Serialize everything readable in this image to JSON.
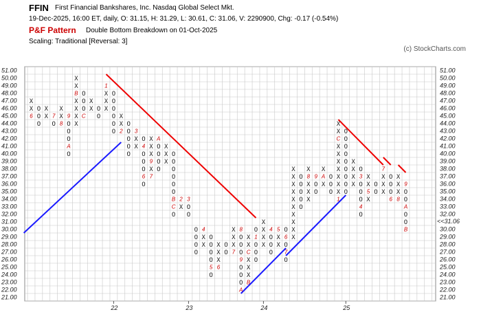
{
  "header": {
    "symbol": "FFIN",
    "company": "First Financial Bankshares, Inc.  Nasdaq Global Select Mkt.",
    "ohlc_line": "19-Dec-2025, 16:00 ET, daily, O: 31.15, H: 31.29, L: 30.61, C: 31.06, V: 2290900, Chg: -0.17 (-0.54%)",
    "pattern_label": "P&F Pattern",
    "pattern_text": "Double Bottom Breakdown on 01-Oct-2025",
    "scaling": "Scaling: Traditional [Reversal: 3]",
    "copyright": "(c) StockCharts.com"
  },
  "colors": {
    "grid": "#c8c8c8",
    "mark": "#222222",
    "month_label": "#cc0000",
    "support": "#1a1aff",
    "resistance": "#ee0000",
    "current_price": "#cc0000"
  },
  "chart_data": {
    "type": "point_and_figure",
    "box_size": 1,
    "reversal": 3,
    "ylim": [
      21,
      51
    ],
    "y_ticks": [
      "21.00",
      "22.00",
      "23.00",
      "24.00",
      "25.00",
      "26.00",
      "27.00",
      "28.00",
      "29.00",
      "30.00",
      "31.00",
      "32.00",
      "33.00",
      "34.00",
      "35.00",
      "36.00",
      "37.00",
      "38.00",
      "39.00",
      "40.00",
      "41.00",
      "42.00",
      "43.00",
      "44.00",
      "45.00",
      "46.00",
      "47.00",
      "48.00",
      "49.00",
      "50.00",
      "51.00"
    ],
    "current_price": 31.06,
    "current_price_label": "31.00",
    "current_price_tag": "31.06",
    "current_price_tag_prefix": "<<",
    "year_labels": [
      {
        "column": 11,
        "label": "22"
      },
      {
        "column": 21,
        "label": "23"
      },
      {
        "column": 31,
        "label": "24"
      },
      {
        "column": 42,
        "label": "25"
      }
    ],
    "columns": [
      {
        "type": "X",
        "low": 46,
        "high": 47,
        "months": [
          {
            "price": 45,
            "label": "6"
          }
        ]
      },
      {
        "type": "O",
        "low": 44,
        "high": 46
      },
      {
        "type": "X",
        "low": 45,
        "high": 46
      },
      {
        "type": "O",
        "low": 44,
        "high": 45,
        "months": [
          {
            "price": 45,
            "label": "7"
          }
        ]
      },
      {
        "type": "X",
        "low": 45,
        "high": 46,
        "months": [
          {
            "price": 44,
            "label": "8"
          }
        ]
      },
      {
        "type": "O",
        "low": 40,
        "high": 45,
        "months": [
          {
            "price": 45,
            "label": "9"
          },
          {
            "price": 41,
            "label": "A"
          }
        ]
      },
      {
        "type": "X",
        "low": 44,
        "high": 50,
        "months": [
          {
            "price": 48,
            "label": "B"
          }
        ]
      },
      {
        "type": "O",
        "low": 45,
        "high": 48,
        "months": [
          {
            "price": 45,
            "label": "C"
          }
        ]
      },
      {
        "type": "X",
        "low": 46,
        "high": 47
      },
      {
        "type": "O",
        "low": 45,
        "high": 46
      },
      {
        "type": "X",
        "low": 46,
        "high": 49,
        "months": [
          {
            "price": 49,
            "label": "1"
          }
        ]
      },
      {
        "type": "O",
        "low": 43,
        "high": 48
      },
      {
        "type": "X",
        "low": 44,
        "high": 45,
        "months": [
          {
            "price": 43,
            "label": "2"
          }
        ]
      },
      {
        "type": "O",
        "low": 40,
        "high": 44
      },
      {
        "type": "X",
        "low": 41,
        "high": 43,
        "months": [
          {
            "price": 43,
            "label": "3"
          }
        ]
      },
      {
        "type": "O",
        "low": 36,
        "high": 42,
        "months": [
          {
            "price": 41,
            "label": "4"
          },
          {
            "price": 37,
            "label": "6"
          }
        ]
      },
      {
        "type": "X",
        "low": 37,
        "high": 42,
        "months": [
          {
            "price": 39,
            "label": "9"
          },
          {
            "price": 37,
            "label": "7"
          }
        ]
      },
      {
        "type": "O",
        "low": 38,
        "high": 42,
        "months": [
          {
            "price": 42,
            "label": "A"
          }
        ]
      },
      {
        "type": "X",
        "low": 39,
        "high": 41
      },
      {
        "type": "O",
        "low": 32,
        "high": 40,
        "months": [
          {
            "price": 34,
            "label": "B"
          },
          {
            "price": 33,
            "label": "C"
          }
        ]
      },
      {
        "type": "X",
        "low": 33,
        "high": 34,
        "months": [
          {
            "price": 34,
            "label": "2"
          }
        ]
      },
      {
        "type": "O",
        "low": 32,
        "high": 34,
        "months": [
          {
            "price": 34,
            "label": "3"
          }
        ]
      },
      {
        "type": "O",
        "low": 27,
        "high": 30
      },
      {
        "type": "X",
        "low": 28,
        "high": 30,
        "months": [
          {
            "price": 30,
            "label": "4"
          }
        ]
      },
      {
        "type": "O",
        "low": 24,
        "high": 29,
        "months": [
          {
            "price": 25,
            "label": "5"
          }
        ]
      },
      {
        "type": "X",
        "low": 26,
        "high": 28,
        "months": [
          {
            "price": 25,
            "label": "6"
          }
        ]
      },
      {
        "type": "O",
        "low": 27,
        "high": 28
      },
      {
        "type": "X",
        "low": 28,
        "high": 30,
        "months": [
          {
            "price": 27,
            "label": "7"
          }
        ]
      },
      {
        "type": "O",
        "low": 22,
        "high": 29,
        "months": [
          {
            "price": 30,
            "label": "8"
          },
          {
            "price": 26,
            "label": "9"
          },
          {
            "price": 22,
            "label": "A"
          }
        ]
      },
      {
        "type": "X",
        "low": 23,
        "high": 29,
        "months": [
          {
            "price": 27,
            "label": "C"
          },
          {
            "price": 23,
            "label": "B"
          }
        ]
      },
      {
        "type": "O",
        "low": 26,
        "high": 30,
        "months": [
          {
            "price": 29,
            "label": "1"
          }
        ]
      },
      {
        "type": "X",
        "low": 28,
        "high": 31
      },
      {
        "type": "O",
        "low": 27,
        "high": 30,
        "months": [
          {
            "price": 30,
            "label": "4"
          }
        ]
      },
      {
        "type": "X",
        "low": 28,
        "high": 29,
        "months": [
          {
            "price": 30,
            "label": "5"
          }
        ]
      },
      {
        "type": "O",
        "low": 26,
        "high": 30,
        "months": [
          {
            "price": 29,
            "label": "6"
          },
          {
            "price": 27,
            "label": "7"
          }
        ]
      },
      {
        "type": "X",
        "low": 29,
        "high": 38
      },
      {
        "type": "O",
        "low": 33,
        "high": 37
      },
      {
        "type": "X",
        "low": 34,
        "high": 38,
        "months": [
          {
            "price": 37,
            "label": "8"
          }
        ]
      },
      {
        "type": "O",
        "low": 35,
        "high": 37,
        "months": [
          {
            "price": 37,
            "label": "9"
          }
        ]
      },
      {
        "type": "X",
        "low": 36,
        "high": 38,
        "months": [
          {
            "price": 37,
            "label": "A"
          }
        ]
      },
      {
        "type": "O",
        "low": 35,
        "high": 37
      },
      {
        "type": "X",
        "low": 34,
        "high": 44,
        "months": [
          {
            "price": 42,
            "label": "C"
          },
          {
            "price": 34,
            "label": "1"
          }
        ]
      },
      {
        "type": "O",
        "low": 35,
        "high": 43
      },
      {
        "type": "X",
        "low": 36,
        "high": 39
      },
      {
        "type": "O",
        "low": 32,
        "high": 38,
        "months": [
          {
            "price": 37,
            "label": "3"
          },
          {
            "price": 33,
            "label": "4"
          }
        ]
      },
      {
        "type": "X",
        "low": 34,
        "high": 37,
        "months": [
          {
            "price": 35,
            "label": "5"
          }
        ]
      },
      {
        "type": "O",
        "low": 35,
        "high": 36
      },
      {
        "type": "X",
        "low": 35,
        "high": 38,
        "months": [
          {
            "price": 38,
            "label": "7"
          }
        ]
      },
      {
        "type": "O",
        "low": 35,
        "high": 37,
        "months": [
          {
            "price": 34,
            "label": "6"
          }
        ]
      },
      {
        "type": "X",
        "low": 35,
        "high": 37,
        "months": [
          {
            "price": 34,
            "label": "8"
          }
        ]
      },
      {
        "type": "O",
        "low": 31,
        "high": 36,
        "months": [
          {
            "price": 36,
            "label": "9"
          },
          {
            "price": 33,
            "label": "A"
          },
          {
            "price": 30,
            "label": "B"
          }
        ]
      }
    ],
    "trendlines": [
      {
        "kind": "support",
        "color": "#1a1aff",
        "from": {
          "column": -1,
          "price": 29.5
        },
        "to": {
          "column": 12,
          "price": 41.5
        }
      },
      {
        "kind": "resistance",
        "color": "#ee0000",
        "from": {
          "column": 10,
          "price": 50.5
        },
        "to": {
          "column": 30,
          "price": 31.5
        }
      },
      {
        "kind": "support",
        "color": "#1a1aff",
        "from": {
          "column": 28,
          "price": 21.5
        },
        "to": {
          "column": 34,
          "price": 27.5
        }
      },
      {
        "kind": "support",
        "color": "#1a1aff",
        "from": {
          "column": 34,
          "price": 26.5
        },
        "to": {
          "column": 42,
          "price": 34.5
        }
      },
      {
        "kind": "resistance",
        "color": "#ee0000",
        "from": {
          "column": 41,
          "price": 44.5
        },
        "to": {
          "column": 47,
          "price": 38.5
        }
      },
      {
        "kind": "resistance",
        "color": "#ee0000",
        "from": {
          "column": 47,
          "price": 39.5
        },
        "to": {
          "column": 48,
          "price": 38.5
        }
      },
      {
        "kind": "resistance",
        "color": "#ee0000",
        "from": {
          "column": 49,
          "price": 38.5
        },
        "to": {
          "column": 50,
          "price": 37.5
        }
      }
    ]
  }
}
